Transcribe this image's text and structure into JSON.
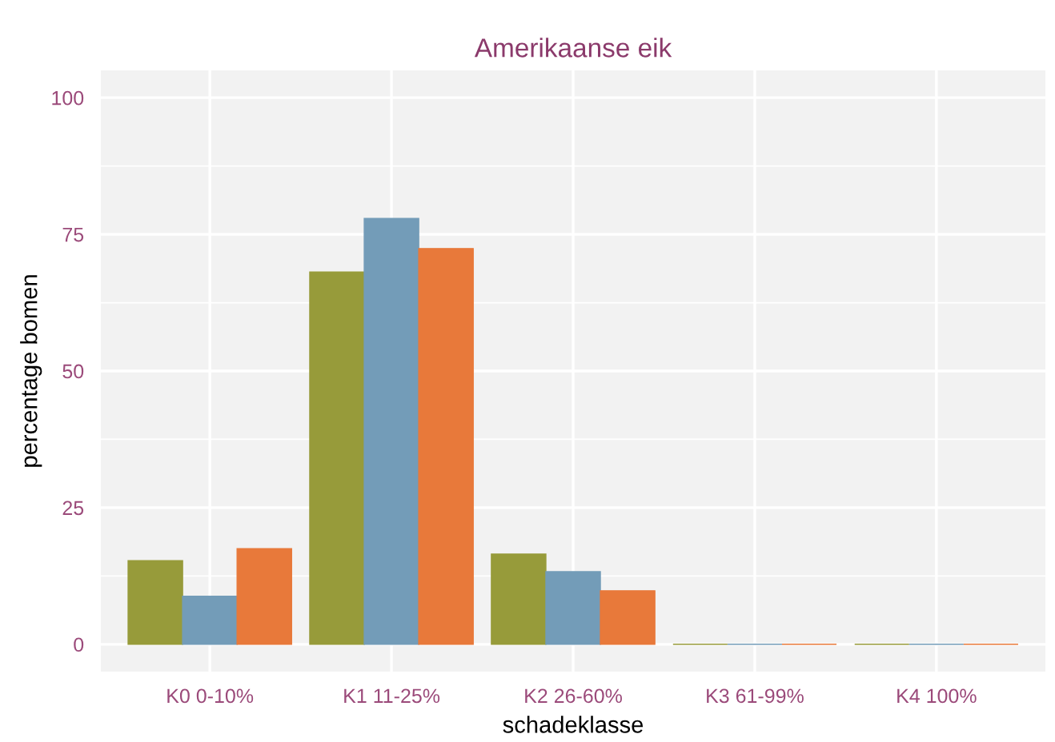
{
  "chart_data": {
    "type": "bar",
    "title": "Amerikaanse eik",
    "xlabel": "schadeklasse",
    "ylabel": "percentage bomen",
    "categories": [
      "K0 0-10%",
      "K1 11-25%",
      "K2 26-60%",
      "K3 61-99%",
      "K4 100%"
    ],
    "series": [
      {
        "color": "#979b3a",
        "values": [
          15.3,
          68.1,
          16.5,
          0,
          0
        ]
      },
      {
        "color": "#739cb8",
        "values": [
          8.8,
          77.9,
          13.3,
          0,
          0
        ]
      },
      {
        "color": "#e8793a",
        "values": [
          17.5,
          72.4,
          9.8,
          0,
          0
        ]
      }
    ],
    "ylim": [
      -5,
      105
    ],
    "yticks": [
      0,
      25,
      50,
      75,
      100
    ],
    "grid": true,
    "legend": false
  }
}
